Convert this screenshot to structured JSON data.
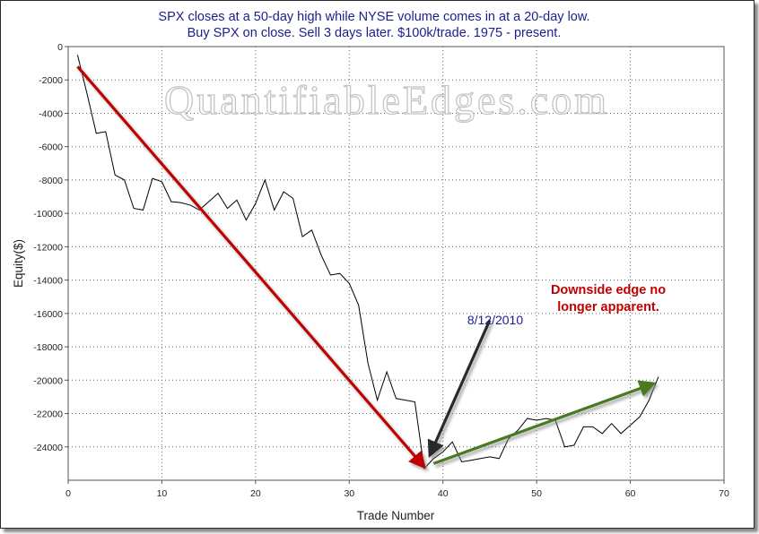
{
  "chart_data": {
    "type": "line",
    "title": [
      "SPX closes at a 50-day high while NYSE volume comes in at a 20-day low.",
      "Buy SPX on close. Sell 3 days later. $100k/trade. 1975 - present."
    ],
    "xlabel": "Trade Number",
    "ylabel": "Equity($)",
    "xlim": [
      0,
      70
    ],
    "ylim": [
      -26000,
      0
    ],
    "x_ticks": [
      0,
      10,
      20,
      30,
      40,
      50,
      60,
      70
    ],
    "y_ticks": [
      0,
      -2000,
      -4000,
      -6000,
      -8000,
      -10000,
      -12000,
      -14000,
      -16000,
      -18000,
      -20000,
      -22000,
      -24000
    ],
    "grid": true,
    "watermark": "QuantifiableEdges.com",
    "series": [
      {
        "color": "#000000",
        "x": [
          1,
          2,
          3,
          4,
          5,
          6,
          7,
          8,
          9,
          10,
          11,
          12,
          13,
          14,
          15,
          16,
          17,
          18,
          19,
          20,
          21,
          22,
          23,
          24,
          25,
          26,
          27,
          28,
          29,
          30,
          31,
          32,
          33,
          34,
          35,
          36,
          37,
          38,
          39,
          40,
          41,
          42,
          43,
          44,
          45,
          46,
          47,
          48,
          49,
          50,
          51,
          52,
          53,
          54,
          55,
          56,
          57,
          58,
          59,
          60,
          61,
          62,
          63
        ],
        "y": [
          -500,
          -2800,
          -5200,
          -5100,
          -7700,
          -8000,
          -9700,
          -9800,
          -7900,
          -8100,
          -9300,
          -9350,
          -9500,
          -9800,
          -9300,
          -8800,
          -9700,
          -9200,
          -10400,
          -9400,
          -8000,
          -9800,
          -8700,
          -9100,
          -11400,
          -11000,
          -12500,
          -13700,
          -13600,
          -14200,
          -15500,
          -19000,
          -21200,
          -19500,
          -21100,
          -21200,
          -21300,
          -25300,
          -24700,
          -24300,
          -23700,
          -24900,
          -24800,
          -24700,
          -24600,
          -24700,
          -23500,
          -23000,
          -22300,
          -22400,
          -22300,
          -22400,
          -24000,
          -23900,
          -22800,
          -22800,
          -23200,
          -22600,
          -23200,
          -22700,
          -22200,
          -21200,
          -19800
        ]
      }
    ],
    "annotations": {
      "date_label": "8/12/2010",
      "edge_label": [
        "Downside edge no",
        "longer apparent."
      ],
      "arrows": [
        {
          "name": "downtrend",
          "color": "#c00000",
          "from": [
            1,
            -1200
          ],
          "to": [
            38,
            -25200
          ]
        },
        {
          "name": "pointer",
          "color": "#2a2a2a",
          "from": [
            45,
            -16400
          ],
          "to": [
            38.6,
            -24500
          ]
        },
        {
          "name": "uptrend",
          "color": "#4a7a22",
          "from": [
            39,
            -25000
          ],
          "to": [
            62.5,
            -20200
          ]
        }
      ]
    }
  }
}
